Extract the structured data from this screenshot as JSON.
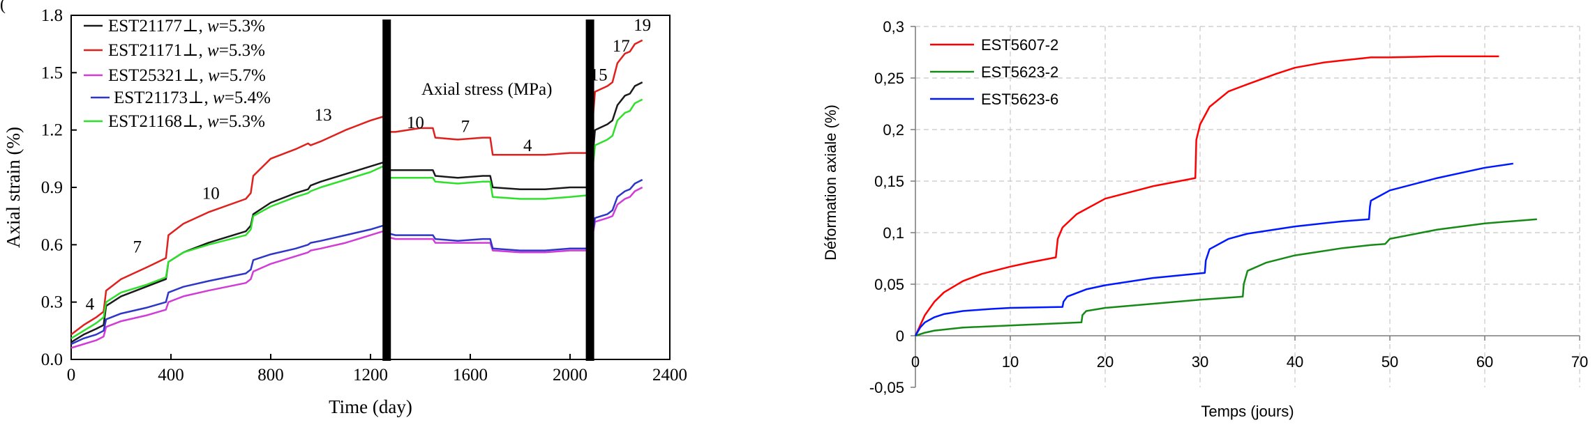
{
  "panel_label": "(",
  "colors": {
    "black": "#1a1a1a",
    "red": "#e0201c",
    "magenta": "#d23cd6",
    "blue": "#2e36c8",
    "green": "#2ee02a",
    "right_red": "#ff0000",
    "right_green": "#168a16",
    "right_blue": "#0018ff"
  },
  "chart_data": [
    {
      "type": "line",
      "xlabel": "Time (day)",
      "ylabel": "Axial strain (%)",
      "xlim": [
        0,
        2400
      ],
      "ylim": [
        0,
        1.8
      ],
      "x_ticks": [
        "0",
        "400",
        "800",
        "1200",
        "1600",
        "2000",
        "2400"
      ],
      "y_ticks": [
        "0.0",
        "0.3",
        "0.6",
        "0.9",
        "1.2",
        "1.5",
        "1.8"
      ],
      "annotation": "Axial stress (MPa)",
      "stress_labels": [
        {
          "text": "4",
          "x": 75,
          "y": 0.26
        },
        {
          "text": "7",
          "x": 265,
          "y": 0.56
        },
        {
          "text": "10",
          "x": 560,
          "y": 0.84
        },
        {
          "text": "13",
          "x": 1010,
          "y": 1.25
        },
        {
          "text": "10",
          "x": 1380,
          "y": 1.21
        },
        {
          "text": "7",
          "x": 1580,
          "y": 1.19
        },
        {
          "text": "4",
          "x": 1830,
          "y": 1.09
        },
        {
          "text": "15",
          "x": 2115,
          "y": 1.46
        },
        {
          "text": "17",
          "x": 2205,
          "y": 1.61
        },
        {
          "text": "19",
          "x": 2290,
          "y": 1.72
        }
      ],
      "vertical_bars_x": [
        1265,
        2080
      ],
      "series": [
        {
          "name": "EST21177⊥, w=5.3%",
          "label_id": "EST21177⊥, ",
          "label_w": "w",
          "label_val": "=5.3%",
          "color_key": "black",
          "x": [
            0,
            50,
            100,
            130,
            140,
            200,
            300,
            380,
            390,
            450,
            550,
            700,
            720,
            730,
            800,
            900,
            950,
            960,
            1000,
            1100,
            1200,
            1250,
            1270,
            1300,
            1400,
            1450,
            1460,
            1550,
            1650,
            1680,
            1690,
            1800,
            1900,
            2000,
            2080,
            2100,
            2150,
            2170,
            2190,
            2220,
            2240,
            2260,
            2290
          ],
          "y": [
            0.09,
            0.13,
            0.16,
            0.18,
            0.28,
            0.33,
            0.38,
            0.42,
            0.51,
            0.56,
            0.61,
            0.67,
            0.7,
            0.76,
            0.82,
            0.87,
            0.89,
            0.91,
            0.93,
            0.97,
            1.01,
            1.03,
            0.99,
            0.99,
            0.99,
            0.99,
            0.96,
            0.95,
            0.96,
            0.96,
            0.9,
            0.89,
            0.89,
            0.9,
            0.9,
            1.2,
            1.23,
            1.25,
            1.33,
            1.38,
            1.39,
            1.43,
            1.45
          ]
        },
        {
          "name": "EST21171⊥, w=5.3%",
          "label_id": "EST21171⊥, ",
          "label_w": "w",
          "label_val": "=5.3%",
          "color_key": "red",
          "x": [
            0,
            50,
            100,
            130,
            140,
            200,
            300,
            380,
            390,
            450,
            550,
            700,
            720,
            730,
            800,
            900,
            950,
            960,
            1000,
            1100,
            1200,
            1250,
            1270,
            1300,
            1400,
            1450,
            1460,
            1550,
            1650,
            1680,
            1690,
            1800,
            1900,
            2000,
            2080,
            2100,
            2150,
            2170,
            2190,
            2220,
            2240,
            2260,
            2290
          ],
          "y": [
            0.13,
            0.18,
            0.22,
            0.25,
            0.36,
            0.42,
            0.48,
            0.53,
            0.65,
            0.71,
            0.77,
            0.84,
            0.87,
            0.96,
            1.05,
            1.1,
            1.13,
            1.12,
            1.14,
            1.2,
            1.25,
            1.27,
            1.19,
            1.19,
            1.21,
            1.21,
            1.16,
            1.15,
            1.16,
            1.16,
            1.07,
            1.07,
            1.07,
            1.08,
            1.08,
            1.4,
            1.43,
            1.45,
            1.55,
            1.6,
            1.61,
            1.65,
            1.67
          ]
        },
        {
          "name": "EST25321⊥, w=5.7%",
          "label_id": "EST25321⊥, ",
          "label_w": "w",
          "label_val": "=5.7%",
          "color_key": "magenta",
          "x": [
            0,
            50,
            100,
            130,
            140,
            200,
            300,
            380,
            390,
            450,
            550,
            700,
            720,
            730,
            800,
            900,
            950,
            960,
            1000,
            1100,
            1200,
            1250,
            1270,
            1300,
            1400,
            1450,
            1460,
            1550,
            1650,
            1680,
            1690,
            1800,
            1900,
            2000,
            2080,
            2100,
            2150,
            2170,
            2190,
            2220,
            2240,
            2260,
            2290
          ],
          "y": [
            0.06,
            0.08,
            0.1,
            0.12,
            0.17,
            0.2,
            0.23,
            0.26,
            0.3,
            0.33,
            0.36,
            0.4,
            0.42,
            0.46,
            0.5,
            0.54,
            0.56,
            0.57,
            0.58,
            0.61,
            0.65,
            0.67,
            0.64,
            0.63,
            0.63,
            0.63,
            0.61,
            0.61,
            0.61,
            0.61,
            0.57,
            0.56,
            0.56,
            0.57,
            0.57,
            0.72,
            0.74,
            0.75,
            0.81,
            0.84,
            0.85,
            0.88,
            0.9
          ]
        },
        {
          "name": "EST21173⊥, w=5.4%",
          "label_id": "EST21173⊥, ",
          "label_w": "w",
          "label_val": "=5.4%",
          "color_key": "blue",
          "x": [
            0,
            50,
            100,
            130,
            140,
            200,
            300,
            380,
            390,
            450,
            550,
            700,
            720,
            730,
            800,
            900,
            950,
            960,
            1000,
            1100,
            1200,
            1250,
            1270,
            1300,
            1400,
            1450,
            1460,
            1550,
            1650,
            1680,
            1690,
            1800,
            1900,
            2000,
            2080,
            2100,
            2150,
            2170,
            2190,
            2220,
            2240,
            2260,
            2290
          ],
          "y": [
            0.08,
            0.11,
            0.13,
            0.15,
            0.21,
            0.24,
            0.27,
            0.3,
            0.35,
            0.38,
            0.41,
            0.45,
            0.47,
            0.52,
            0.55,
            0.58,
            0.6,
            0.61,
            0.62,
            0.65,
            0.68,
            0.7,
            0.66,
            0.65,
            0.65,
            0.65,
            0.63,
            0.62,
            0.63,
            0.63,
            0.58,
            0.57,
            0.57,
            0.58,
            0.58,
            0.74,
            0.76,
            0.78,
            0.85,
            0.88,
            0.89,
            0.92,
            0.94
          ]
        },
        {
          "name": "EST21168⊥, w=5.3%",
          "label_id": "EST21168⊥, ",
          "label_w": "w",
          "label_val": "=5.3%",
          "color_key": "green",
          "x": [
            0,
            50,
            100,
            130,
            140,
            200,
            300,
            380,
            390,
            450,
            550,
            700,
            720,
            730,
            800,
            900,
            950,
            960,
            1000,
            1100,
            1200,
            1250,
            1270,
            1300,
            1400,
            1450,
            1460,
            1550,
            1650,
            1680,
            1690,
            1800,
            1900,
            2000,
            2080,
            2100,
            2150,
            2170,
            2190,
            2220,
            2240,
            2260,
            2290
          ],
          "y": [
            0.11,
            0.15,
            0.19,
            0.22,
            0.3,
            0.35,
            0.39,
            0.43,
            0.51,
            0.56,
            0.6,
            0.65,
            0.68,
            0.75,
            0.8,
            0.85,
            0.87,
            0.88,
            0.9,
            0.94,
            0.98,
            1.01,
            0.95,
            0.95,
            0.95,
            0.95,
            0.93,
            0.92,
            0.93,
            0.93,
            0.85,
            0.84,
            0.84,
            0.85,
            0.86,
            1.12,
            1.15,
            1.17,
            1.25,
            1.29,
            1.3,
            1.34,
            1.36
          ]
        }
      ]
    },
    {
      "type": "line",
      "xlabel": "Temps (jours)",
      "ylabel": "Déformation axiale (%)",
      "xlim": [
        0,
        70
      ],
      "ylim": [
        -0.05,
        0.3
      ],
      "x_ticks": [
        "0",
        "10",
        "20",
        "30",
        "40",
        "50",
        "60",
        "70"
      ],
      "y_ticks": [
        "-0,05",
        "0",
        "0,05",
        "0,1",
        "0,15",
        "0,2",
        "0,25",
        "0,3"
      ],
      "grid": true,
      "series": [
        {
          "name": "EST5607-2",
          "color_key": "right_red",
          "x": [
            0,
            0.5,
            1,
            2,
            3,
            5,
            7,
            10,
            12,
            14.8,
            15,
            15.5,
            17,
            20,
            25,
            29.5,
            29.6,
            30,
            31,
            33,
            35,
            38,
            40,
            43,
            45,
            47,
            48,
            50,
            55,
            60,
            61.5
          ],
          "y": [
            0,
            0.01,
            0.02,
            0.033,
            0.042,
            0.053,
            0.06,
            0.067,
            0.071,
            0.076,
            0.094,
            0.105,
            0.118,
            0.133,
            0.145,
            0.153,
            0.19,
            0.205,
            0.222,
            0.237,
            0.244,
            0.254,
            0.26,
            0.265,
            0.267,
            0.269,
            0.27,
            0.27,
            0.271,
            0.271,
            0.271
          ]
        },
        {
          "name": "EST5623-2",
          "color_key": "right_green",
          "x": [
            0,
            1,
            2,
            5,
            10,
            15,
            17.5,
            17.6,
            18,
            20,
            25,
            30,
            34.5,
            34.6,
            35,
            37,
            40,
            45,
            48,
            49.5,
            50,
            55,
            60,
            65.5
          ],
          "y": [
            0,
            0.003,
            0.005,
            0.008,
            0.01,
            0.012,
            0.013,
            0.02,
            0.024,
            0.027,
            0.031,
            0.035,
            0.038,
            0.05,
            0.063,
            0.071,
            0.078,
            0.085,
            0.088,
            0.089,
            0.094,
            0.103,
            0.109,
            0.113
          ]
        },
        {
          "name": "EST5623-6",
          "color_key": "right_blue",
          "x": [
            0,
            0.5,
            1,
            2,
            3,
            5,
            8,
            10,
            15.5,
            15.6,
            16,
            18,
            20,
            25,
            30.5,
            30.6,
            31,
            33,
            35,
            40,
            45,
            47.8,
            47.9,
            48,
            50,
            55,
            60,
            63
          ],
          "y": [
            0,
            0.008,
            0.013,
            0.018,
            0.021,
            0.024,
            0.026,
            0.027,
            0.028,
            0.033,
            0.038,
            0.045,
            0.049,
            0.056,
            0.061,
            0.073,
            0.084,
            0.094,
            0.099,
            0.106,
            0.111,
            0.113,
            0.125,
            0.131,
            0.141,
            0.153,
            0.163,
            0.167
          ]
        }
      ]
    }
  ]
}
